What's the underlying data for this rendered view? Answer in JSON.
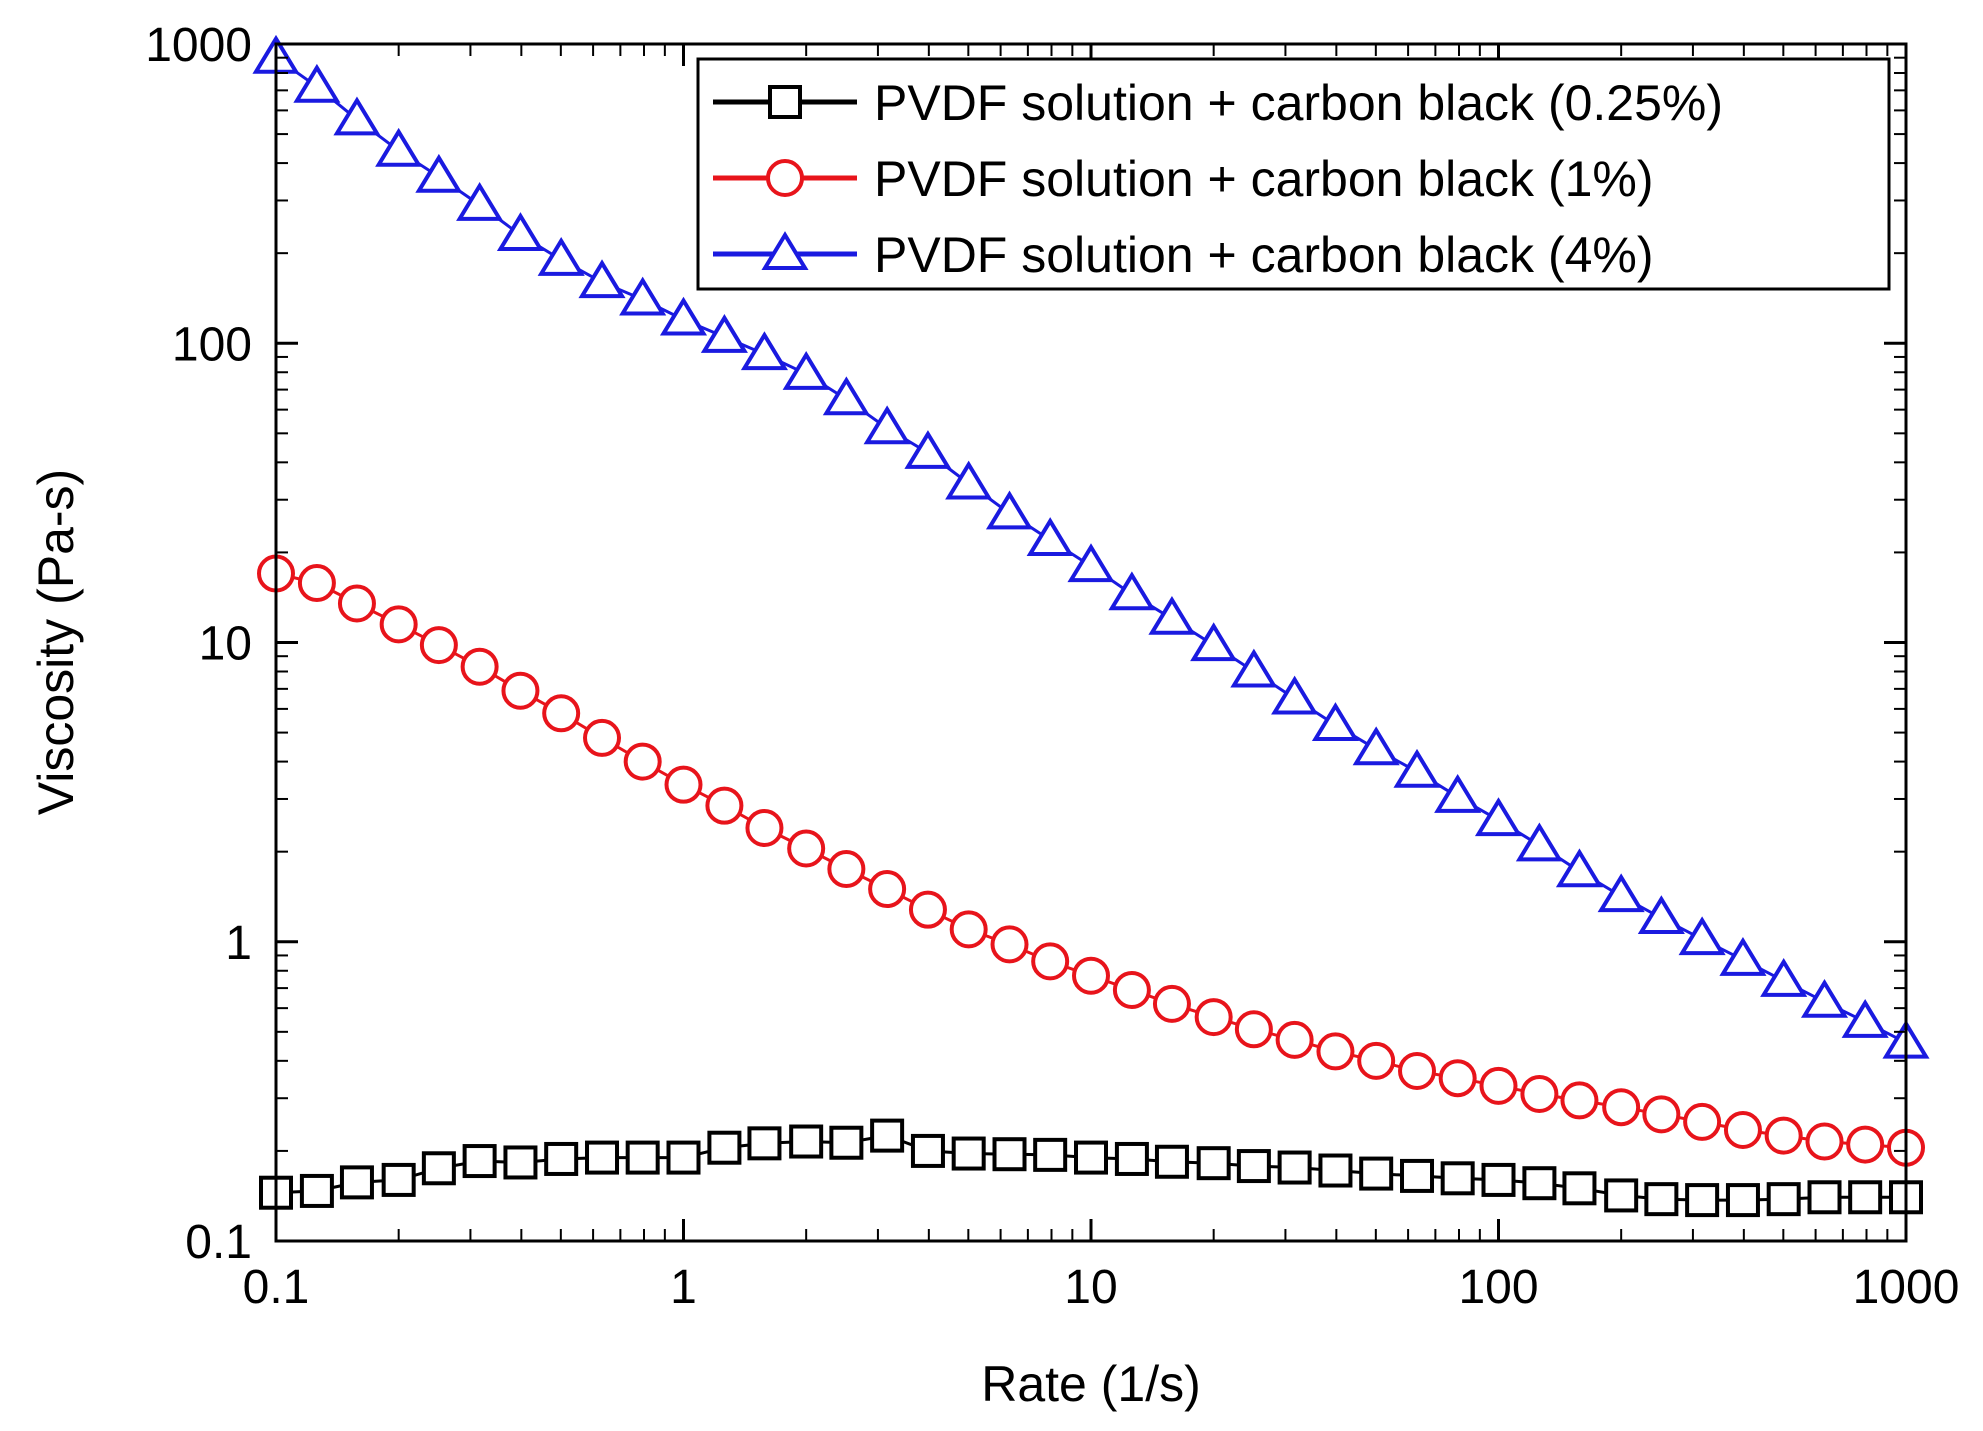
{
  "chart_data": {
    "type": "scatter",
    "xscale": "log",
    "yscale": "log",
    "xlabel": "Rate (1/s)",
    "ylabel": "Viscosity (Pa-s)",
    "xlim": [
      0.1,
      1000
    ],
    "ylim": [
      0.1,
      1000
    ],
    "x_ticks": [
      0.1,
      1,
      10,
      100,
      1000
    ],
    "x_tick_labels": [
      "0.1",
      "1",
      "10",
      "100",
      "1000"
    ],
    "y_ticks": [
      0.1,
      1,
      10,
      100,
      1000
    ],
    "y_tick_labels": [
      "0.1",
      "1",
      "10",
      "100",
      "1000"
    ],
    "legend_position": "top-right",
    "grid": false,
    "x": [
      0.1,
      0.126,
      0.158,
      0.2,
      0.251,
      0.316,
      0.398,
      0.501,
      0.631,
      0.794,
      1,
      1.26,
      1.58,
      2,
      2.51,
      3.16,
      3.98,
      5.01,
      6.31,
      7.94,
      10,
      12.6,
      15.8,
      20,
      25.1,
      31.6,
      39.8,
      50.1,
      63.1,
      79.4,
      100,
      126,
      158,
      200,
      251,
      316,
      398,
      501,
      631,
      794,
      1000
    ],
    "series": [
      {
        "name": "PVDF solution + carbon black (0.25%)",
        "color": "#000000",
        "marker": "square",
        "values": [
          0.145,
          0.147,
          0.157,
          0.16,
          0.175,
          0.185,
          0.183,
          0.188,
          0.19,
          0.19,
          0.19,
          0.205,
          0.212,
          0.215,
          0.213,
          0.225,
          0.2,
          0.196,
          0.195,
          0.194,
          0.19,
          0.188,
          0.184,
          0.182,
          0.178,
          0.176,
          0.172,
          0.168,
          0.165,
          0.162,
          0.16,
          0.156,
          0.15,
          0.142,
          0.138,
          0.137,
          0.137,
          0.138,
          0.14,
          0.14,
          0.14
        ]
      },
      {
        "name": "PVDF solution + carbon black (1%)",
        "color": "#e8141b",
        "marker": "circle",
        "values": [
          17,
          15.8,
          13.5,
          11.5,
          9.8,
          8.3,
          6.9,
          5.8,
          4.8,
          4.0,
          3.35,
          2.85,
          2.4,
          2.05,
          1.75,
          1.5,
          1.28,
          1.1,
          0.98,
          0.86,
          0.77,
          0.69,
          0.62,
          0.56,
          0.51,
          0.47,
          0.43,
          0.4,
          0.37,
          0.35,
          0.33,
          0.31,
          0.295,
          0.28,
          0.265,
          0.25,
          0.235,
          0.225,
          0.215,
          0.21,
          0.205
        ]
      },
      {
        "name": "PVDF solution + carbon black (4%)",
        "color": "#1a1ae0",
        "marker": "triangle",
        "values": [
          900,
          720,
          560,
          440,
          360,
          290,
          230,
          190,
          160,
          140,
          120,
          105,
          92,
          79,
          65,
          52,
          43,
          34,
          27,
          22,
          18,
          14.5,
          12,
          9.8,
          8.0,
          6.5,
          5.3,
          4.4,
          3.7,
          3.05,
          2.55,
          2.1,
          1.72,
          1.42,
          1.2,
          1.02,
          0.87,
          0.74,
          0.63,
          0.54,
          0.46
        ]
      }
    ]
  }
}
